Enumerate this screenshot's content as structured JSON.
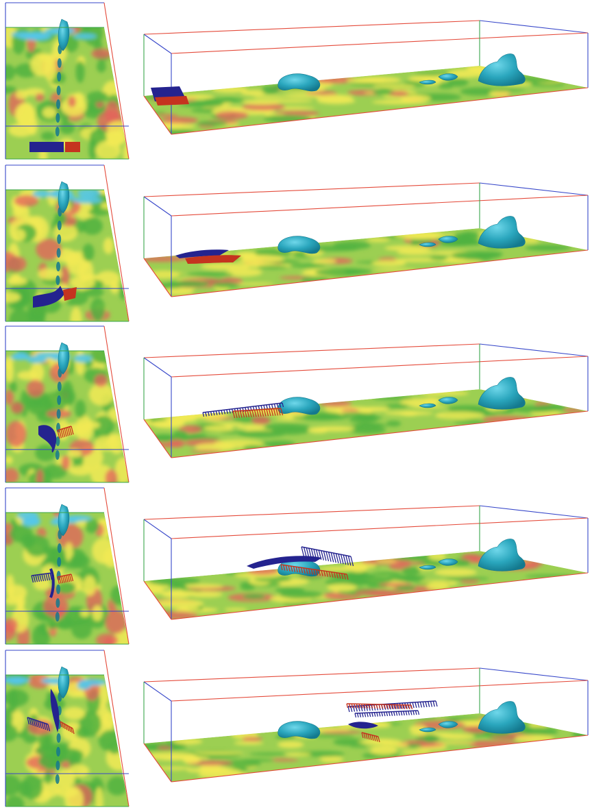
{
  "figure": {
    "panel_count": 5,
    "views": [
      "top-view",
      "perspective-view"
    ],
    "colors": {
      "plane_base": "#9ccf52",
      "plane_green": "#4fb13f",
      "plane_yellow": "#f2ea55",
      "plane_red": "#e5605c",
      "plane_cyan": "#55c6e8",
      "isosurface": "#2aa6bd",
      "isosurface_dark": "#14798e",
      "sheet_blue": "#24238f",
      "sheet_red": "#c5341f",
      "box_edge_red": "#e44a3a",
      "box_edge_blue": "#3646c9",
      "box_edge_green": "#3aa54a"
    },
    "frames": [
      {
        "stage": 1,
        "sheet_state": "flat-rectangle"
      },
      {
        "stage": 2,
        "sheet_state": "bent-sheet"
      },
      {
        "stage": 3,
        "sheet_state": "rolling-sheet"
      },
      {
        "stage": 4,
        "sheet_state": "twisted-sheet"
      },
      {
        "stage": 5,
        "sheet_state": "lifted-fragmented"
      }
    ]
  }
}
